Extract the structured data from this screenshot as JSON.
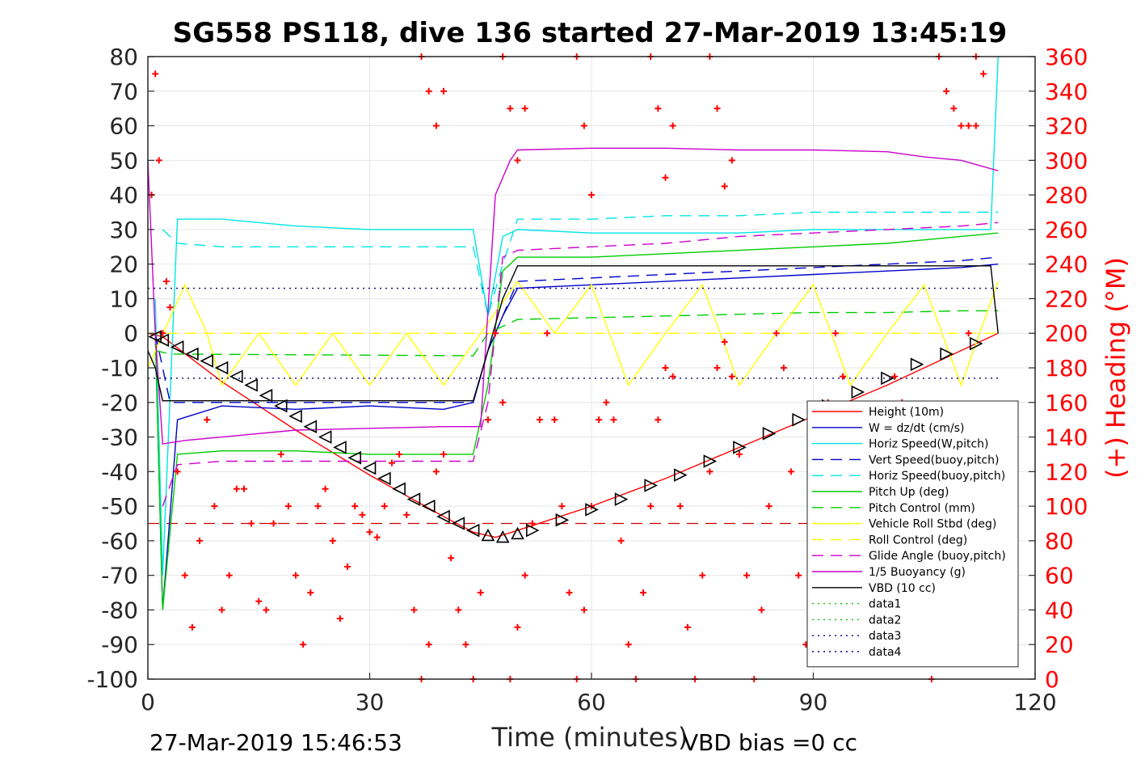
{
  "chart_data": {
    "type": "line",
    "title": "SG558 PS118, dive 136 started 27-Mar-2019 13:45:19",
    "xlabel": "Time (minutes)",
    "ylabel": "",
    "y2label": "(+) Heading (°M)",
    "xlim": [
      0,
      120
    ],
    "ylim": [
      -100,
      80
    ],
    "y2lim": [
      0,
      360
    ],
    "xticks": [
      0,
      30,
      60,
      90,
      120
    ],
    "yticks": [
      80,
      70,
      60,
      50,
      40,
      30,
      20,
      10,
      0,
      -10,
      -20,
      -30,
      -40,
      -50,
      -60,
      -70,
      -80,
      -90,
      -100
    ],
    "y2ticks": [
      360,
      340,
      320,
      300,
      280,
      260,
      240,
      220,
      200,
      180,
      160,
      140,
      120,
      100,
      80,
      60,
      40,
      20,
      0
    ],
    "grid": true,
    "legend_position": "bottom-right",
    "footer_left": "27-Mar-2019 15:46:53",
    "footer_right": "VBD bias =0 cc",
    "series": [
      {
        "name": "Height (10m)",
        "color": "#ff0000",
        "style": "solid",
        "x": [
          0,
          2,
          10,
          20,
          30,
          40,
          44,
          47,
          50,
          60,
          70,
          80,
          90,
          100,
          110,
          115
        ],
        "y": [
          0,
          -1,
          -14,
          -28,
          -41,
          -53,
          -57.5,
          -59,
          -57,
          -50,
          -42,
          -33,
          -24,
          -15,
          -5,
          0
        ]
      },
      {
        "name": "W = dz/dt (cm/s)",
        "color": "#0000cc",
        "style": "solid",
        "x": [
          1,
          2,
          4,
          10,
          20,
          30,
          40,
          44,
          46,
          48,
          50,
          60,
          70,
          80,
          90,
          100,
          110,
          115
        ],
        "y": [
          0,
          -80,
          -25,
          -21,
          -22,
          -21,
          -22,
          -20,
          -5,
          5,
          13,
          14,
          15,
          16,
          17,
          18,
          19,
          20
        ]
      },
      {
        "name": "Horiz Speed(W,pitch)",
        "color": "#00e5e5",
        "style": "solid",
        "x": [
          1,
          2,
          4,
          10,
          20,
          30,
          40,
          44,
          46,
          48,
          50,
          60,
          70,
          80,
          90,
          100,
          110,
          114,
          115
        ],
        "y": [
          10,
          -70,
          33,
          33,
          31,
          30,
          30,
          30,
          5,
          28,
          30,
          29,
          29,
          29,
          30,
          30,
          30,
          30,
          80
        ]
      },
      {
        "name": "Vert Speed(buoy,pitch)",
        "color": "#0000cc",
        "style": "dashed",
        "x": [
          1,
          3,
          10,
          20,
          30,
          40,
          44,
          46,
          50,
          60,
          70,
          80,
          90,
          100,
          110,
          115
        ],
        "y": [
          0,
          -20,
          -20,
          -20,
          -20,
          -20,
          -20,
          -5,
          15,
          16,
          17,
          18,
          19,
          20,
          21,
          22
        ]
      },
      {
        "name": "Horiz Speed(buoy,pitch)",
        "color": "#00e5e5",
        "style": "dashed",
        "x": [
          2,
          4,
          10,
          20,
          30,
          40,
          44,
          46,
          48,
          50,
          60,
          70,
          80,
          90,
          100,
          110,
          115
        ],
        "y": [
          30,
          26,
          25,
          25,
          25,
          25,
          25,
          5,
          20,
          33,
          33,
          34,
          34,
          35,
          35,
          35,
          35
        ]
      },
      {
        "name": "Pitch Up (deg)",
        "color": "#00cc00",
        "style": "solid",
        "x": [
          1,
          2,
          4,
          10,
          20,
          30,
          40,
          44,
          46,
          48,
          50,
          60,
          70,
          80,
          90,
          100,
          110,
          115
        ],
        "y": [
          0,
          -80,
          -35,
          -34,
          -34,
          -35,
          -35,
          -35,
          -15,
          18,
          22,
          22,
          23,
          24,
          25,
          26,
          28,
          29
        ]
      },
      {
        "name": "Pitch Control (mm)",
        "color": "#00cc00",
        "style": "dashed",
        "x": [
          1,
          3,
          44,
          46,
          50,
          60,
          70,
          80,
          90,
          100,
          110,
          115
        ],
        "y": [
          -5,
          -6,
          -6.5,
          0,
          4,
          4.5,
          5,
          5.5,
          6,
          6,
          6.5,
          6.5
        ]
      },
      {
        "name": "Vehicle Roll Stbd (deg)",
        "color": "#ffff00",
        "style": "solid",
        "x": [
          0,
          5,
          8,
          10,
          15,
          20,
          25,
          30,
          35,
          40,
          45,
          50,
          55,
          60,
          65,
          70,
          75,
          80,
          85,
          90,
          95,
          100,
          105,
          110,
          115
        ],
        "y": [
          -10,
          14,
          0,
          -15,
          0,
          -15,
          0,
          -15,
          0,
          -15,
          0,
          15,
          0,
          14,
          -15,
          0,
          14,
          -15,
          0,
          14,
          -15,
          0,
          14,
          -15,
          15
        ]
      },
      {
        "name": "Roll Control (deg)",
        "color": "#ffff00",
        "style": "dashed",
        "x": [
          0,
          10,
          30,
          40,
          60,
          80,
          100,
          115
        ],
        "y": [
          0,
          0,
          0,
          0,
          0,
          0,
          0,
          0
        ]
      },
      {
        "name": "Glide Angle (buoy,pitch)",
        "color": "#cc00cc",
        "style": "dashed",
        "x": [
          2,
          4,
          10,
          20,
          30,
          40,
          44,
          46,
          48,
          50,
          60,
          70,
          80,
          90,
          100,
          110,
          115
        ],
        "y": [
          -50,
          -38,
          -37,
          -37,
          -37,
          -37,
          -37,
          -20,
          22,
          24,
          25,
          26,
          28,
          29,
          30,
          31,
          32
        ]
      },
      {
        "name": "1/5 Buoyancy (g)",
        "color": "#cc00cc",
        "style": "solid",
        "x": [
          0,
          1,
          2,
          5,
          10,
          20,
          30,
          40,
          44,
          45,
          47,
          49,
          50,
          60,
          70,
          80,
          90,
          100,
          105,
          110,
          115
        ],
        "y": [
          50,
          0,
          -32,
          -31,
          -30,
          -28,
          -27.5,
          -27,
          -27,
          -27,
          40,
          50,
          53,
          53.5,
          53.5,
          53,
          53,
          52.5,
          51,
          50,
          47
        ]
      },
      {
        "name": "VBD (10 cc)",
        "color": "#000000",
        "style": "solid",
        "x": [
          0,
          1,
          2,
          3,
          40,
          44,
          46,
          48,
          50,
          60,
          80,
          100,
          114,
          115
        ],
        "y": [
          -5,
          -10,
          -19.5,
          -19.5,
          -19.5,
          -19.5,
          -5,
          10,
          19.5,
          19.5,
          19.5,
          19.5,
          19.5,
          0
        ]
      },
      {
        "name": "data1",
        "color": "#00cc00",
        "style": "dotted",
        "x": [],
        "y": []
      },
      {
        "name": "data2",
        "color": "#00cc00",
        "style": "dotted",
        "x": [],
        "y": []
      },
      {
        "name": "data3",
        "color": "#000080",
        "style": "dotted",
        "x": [
          0,
          115
        ],
        "y": [
          13,
          13
        ]
      },
      {
        "name": "data4",
        "color": "#000080",
        "style": "dotted",
        "x": [
          0,
          115
        ],
        "y": [
          -13,
          -13
        ]
      }
    ],
    "reference_lines": [
      {
        "color": "#cc0000",
        "style": "dashed",
        "x": [
          0,
          115
        ],
        "y": [
          -55,
          -55
        ]
      }
    ],
    "heading_series": {
      "name": "(+) Heading",
      "color": "#ff0000",
      "marker": "+",
      "axis": "right",
      "x": [
        0.5,
        1,
        1.5,
        2,
        2.5,
        3,
        4,
        5,
        6,
        7,
        8,
        9,
        10,
        11,
        12,
        13,
        14,
        15,
        16,
        17,
        18,
        19,
        20,
        21,
        22,
        23,
        24,
        25,
        26,
        27,
        28,
        29,
        30,
        31,
        32,
        33,
        34,
        35,
        36,
        37,
        38,
        39,
        40,
        41,
        42,
        43,
        44,
        45,
        46,
        47,
        48,
        49,
        50,
        51,
        52,
        53,
        54,
        55,
        56,
        57,
        58,
        59,
        60,
        61,
        62,
        63,
        64,
        65,
        66,
        67,
        68,
        69,
        70,
        71,
        72,
        73,
        74,
        75,
        76,
        77,
        78,
        79,
        80,
        81,
        82,
        83,
        84,
        85,
        86,
        87,
        88,
        89,
        90,
        91,
        92,
        93,
        94,
        95,
        96,
        97,
        98,
        99,
        100,
        101,
        102,
        103,
        104,
        105,
        106,
        107,
        108,
        109,
        110,
        111,
        112,
        113
      ],
      "y": [
        280,
        350,
        300,
        200,
        230,
        215,
        120,
        60,
        30,
        80,
        150,
        100,
        40,
        60,
        110,
        110,
        90,
        45,
        40,
        90,
        130,
        100,
        60,
        20,
        50,
        100,
        110,
        80,
        35,
        65,
        100,
        95,
        85,
        82,
        100,
        125,
        130,
        95,
        40,
        0,
        20,
        120,
        130,
        70,
        40,
        20,
        0,
        50,
        150,
        200,
        160,
        0,
        30,
        60,
        90,
        150,
        200,
        150,
        100,
        50,
        0,
        40,
        100,
        150,
        160,
        150,
        80,
        20,
        0,
        50,
        100,
        150,
        180,
        175,
        100,
        30,
        0,
        60,
        120,
        180,
        195,
        175,
        130,
        60,
        0,
        40,
        100,
        200,
        180,
        120,
        60,
        20,
        40,
        100,
        160,
        200,
        175,
        120,
        60,
        20,
        30,
        80,
        130,
        175,
        160,
        110,
        60,
        10,
        0,
        20,
        50,
        100,
        150,
        200,
        320,
        350
      ],
      "x_top": [
        37,
        38,
        39,
        40,
        48,
        49,
        50,
        51,
        58,
        59,
        60,
        68,
        69,
        70,
        71,
        76,
        77,
        78,
        79,
        107,
        108,
        109,
        110,
        111,
        112
      ],
      "y_top": [
        360,
        340,
        320,
        340,
        360,
        330,
        300,
        330,
        360,
        320,
        280,
        360,
        330,
        290,
        320,
        360,
        330,
        285,
        300,
        360,
        340,
        330,
        320,
        320,
        360
      ]
    },
    "triangle_markers": {
      "color": "#000000",
      "x": [
        1,
        2,
        4,
        6,
        8,
        10,
        12,
        14,
        16,
        18,
        20,
        22,
        24,
        26,
        28,
        30,
        32,
        34,
        36,
        38,
        40,
        42,
        44,
        46,
        48,
        50,
        52,
        56,
        60,
        64,
        68,
        72,
        76,
        80,
        84,
        88,
        92,
        96,
        100,
        104,
        108,
        112
      ],
      "y": [
        -1,
        -2,
        -4,
        -6,
        -8,
        -10,
        -12.5,
        -15,
        -18,
        -21,
        -24,
        -27,
        -30,
        -33,
        -36,
        -39,
        -42,
        -45,
        -48,
        -50,
        -53,
        -55,
        -57,
        -58.5,
        -59,
        -58,
        -57,
        -54,
        -51,
        -48,
        -44,
        -41,
        -37,
        -33,
        -29,
        -25,
        -21,
        -17,
        -13,
        -9,
        -6,
        -3
      ]
    }
  }
}
